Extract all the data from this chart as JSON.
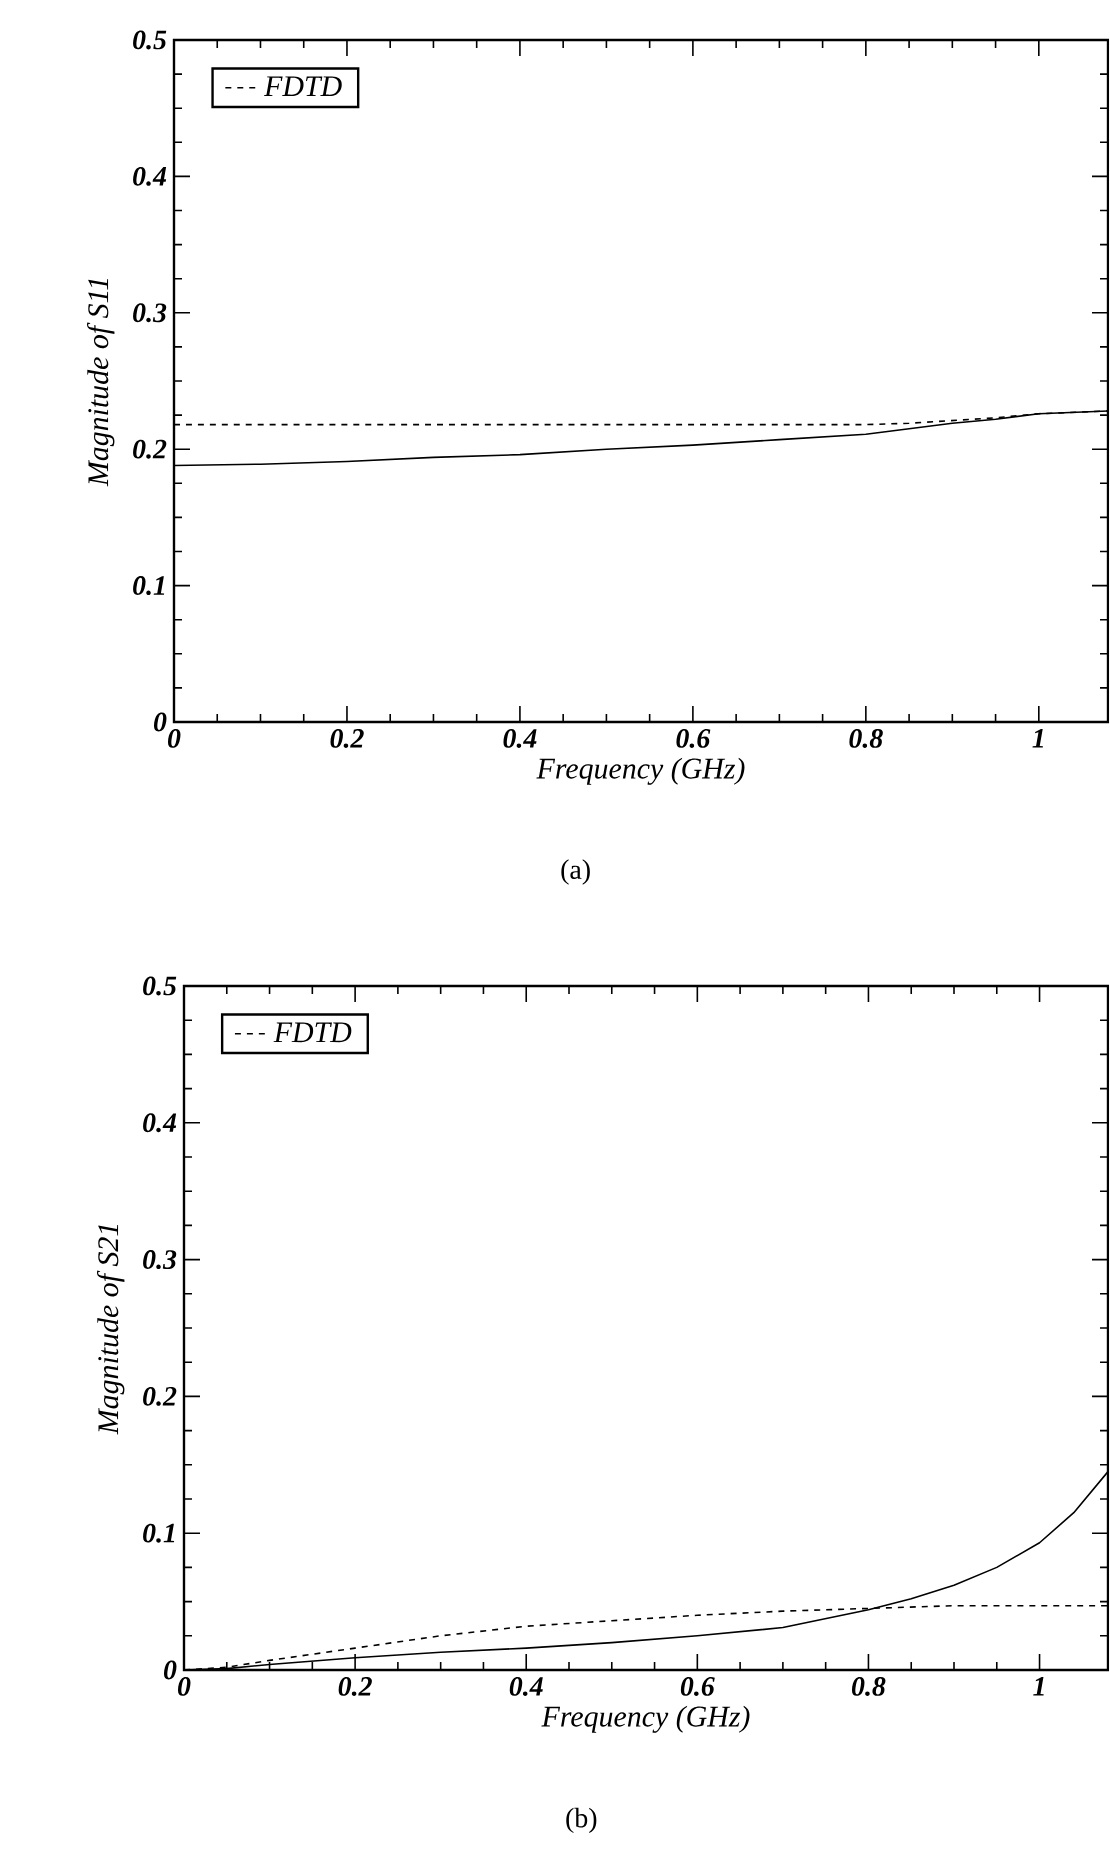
{
  "chart_data": [
    {
      "type": "line",
      "xlabel": "Frequency (GHz)",
      "ylabel": "Magnitude of S11",
      "xlim": [
        0,
        1.08
      ],
      "ylim": [
        0,
        0.5
      ],
      "xticks": [
        0,
        0.2,
        0.4,
        0.6,
        0.8,
        1
      ],
      "yticks": [
        0,
        0.1,
        0.2,
        0.3,
        0.4,
        0.5
      ],
      "legend": "top left",
      "annotations": [
        "(a)"
      ],
      "series": [
        {
          "color": "#000000",
          "line_style": "solid",
          "x": [
            0,
            0.1,
            0.2,
            0.3,
            0.4,
            0.5,
            0.6,
            0.7,
            0.8,
            0.85,
            0.9,
            0.95,
            1.0,
            1.08
          ],
          "values": [
            0.188,
            0.189,
            0.191,
            0.194,
            0.196,
            0.2,
            0.203,
            0.207,
            0.211,
            0.215,
            0.219,
            0.222,
            0.226,
            0.228
          ]
        },
        {
          "name": "FDTD",
          "color": "#000000",
          "line_style": "dashed",
          "x": [
            0,
            0.2,
            0.4,
            0.6,
            0.8,
            0.85,
            0.9,
            0.95,
            1.0,
            1.08
          ],
          "values": [
            0.218,
            0.218,
            0.218,
            0.218,
            0.218,
            0.219,
            0.221,
            0.223,
            0.226,
            0.228
          ]
        }
      ]
    },
    {
      "type": "line",
      "xlabel": "Frequency (GHz)",
      "ylabel": "Magnitude of S21",
      "xlim": [
        0,
        1.08
      ],
      "ylim": [
        0,
        0.5
      ],
      "xticks": [
        0,
        0.2,
        0.4,
        0.6,
        0.8,
        1
      ],
      "yticks": [
        0,
        0.1,
        0.2,
        0.3,
        0.4,
        0.5
      ],
      "legend": "top left",
      "annotations": [
        "(b)"
      ],
      "series": [
        {
          "color": "#000000",
          "line_style": "solid",
          "x": [
            0,
            0.05,
            0.1,
            0.2,
            0.3,
            0.4,
            0.5,
            0.6,
            0.7,
            0.8,
            0.85,
            0.9,
            0.95,
            1.0,
            1.04,
            1.08
          ],
          "values": [
            0,
            0.001,
            0.004,
            0.009,
            0.013,
            0.016,
            0.02,
            0.025,
            0.031,
            0.044,
            0.052,
            0.062,
            0.075,
            0.093,
            0.115,
            0.145
          ]
        },
        {
          "name": "FDTD",
          "color": "#000000",
          "line_style": "dashed",
          "x": [
            0,
            0.05,
            0.1,
            0.2,
            0.3,
            0.4,
            0.5,
            0.6,
            0.7,
            0.8,
            0.9,
            1.0,
            1.08
          ],
          "values": [
            0,
            0.002,
            0.007,
            0.016,
            0.025,
            0.032,
            0.036,
            0.04,
            0.043,
            0.045,
            0.047,
            0.047,
            0.047
          ]
        }
      ]
    }
  ]
}
